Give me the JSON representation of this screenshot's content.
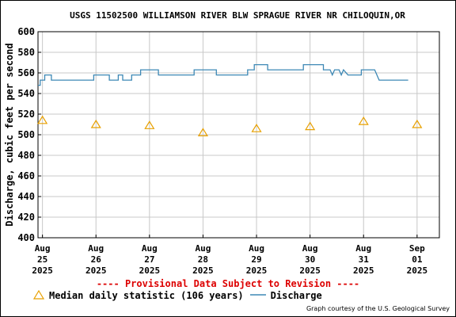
{
  "chart_data": {
    "type": "line",
    "title": "USGS 11502500 WILLIAMSON RIVER BLW SPRAGUE RIVER NR CHILOQUIN,OR",
    "ylabel": "Discharge, cubic feet per second",
    "xlabel": "",
    "ylim": [
      400,
      600
    ],
    "yticks": [
      400,
      420,
      440,
      460,
      480,
      500,
      520,
      540,
      560,
      580,
      600
    ],
    "grid": true,
    "x_range": [
      "2025-08-24T22:00",
      "2025-09-01T10:00"
    ],
    "xticks": [
      {
        "x": "2025-08-25",
        "lines": [
          "Aug",
          "25",
          "2025"
        ]
      },
      {
        "x": "2025-08-26",
        "lines": [
          "Aug",
          "26",
          "2025"
        ]
      },
      {
        "x": "2025-08-27",
        "lines": [
          "Aug",
          "27",
          "2025"
        ]
      },
      {
        "x": "2025-08-28",
        "lines": [
          "Aug",
          "28",
          "2025"
        ]
      },
      {
        "x": "2025-08-29",
        "lines": [
          "Aug",
          "29",
          "2025"
        ]
      },
      {
        "x": "2025-08-30",
        "lines": [
          "Aug",
          "30",
          "2025"
        ]
      },
      {
        "x": "2025-08-31",
        "lines": [
          "Aug",
          "31",
          "2025"
        ]
      },
      {
        "x": "2025-09-01",
        "lines": [
          "Sep",
          "01",
          "2025"
        ]
      }
    ],
    "series": [
      {
        "name": "Discharge",
        "color": "#3d88b5",
        "style": "line",
        "points": [
          [
            "2025-08-24T22:00",
            548
          ],
          [
            "2025-08-24T23:00",
            548
          ],
          [
            "2025-08-24T23:00",
            553
          ],
          [
            "2025-08-25T01:00",
            553
          ],
          [
            "2025-08-25T01:00",
            558
          ],
          [
            "2025-08-25T04:00",
            558
          ],
          [
            "2025-08-25T04:00",
            553
          ],
          [
            "2025-08-25T23:00",
            553
          ],
          [
            "2025-08-25T23:00",
            558
          ],
          [
            "2025-08-26T06:00",
            558
          ],
          [
            "2025-08-26T06:00",
            553
          ],
          [
            "2025-08-26T10:00",
            553
          ],
          [
            "2025-08-26T10:00",
            558
          ],
          [
            "2025-08-26T12:00",
            558
          ],
          [
            "2025-08-26T12:00",
            553
          ],
          [
            "2025-08-26T16:00",
            553
          ],
          [
            "2025-08-26T16:00",
            558
          ],
          [
            "2025-08-26T20:00",
            558
          ],
          [
            "2025-08-26T20:00",
            563
          ],
          [
            "2025-08-27T04:00",
            563
          ],
          [
            "2025-08-27T04:00",
            558
          ],
          [
            "2025-08-27T20:00",
            558
          ],
          [
            "2025-08-27T20:00",
            563
          ],
          [
            "2025-08-28T06:00",
            563
          ],
          [
            "2025-08-28T06:00",
            558
          ],
          [
            "2025-08-28T20:00",
            558
          ],
          [
            "2025-08-28T20:00",
            563
          ],
          [
            "2025-08-28T23:00",
            563
          ],
          [
            "2025-08-28T23:00",
            568
          ],
          [
            "2025-08-29T05:00",
            568
          ],
          [
            "2025-08-29T05:00",
            563
          ],
          [
            "2025-08-29T21:00",
            563
          ],
          [
            "2025-08-29T21:00",
            568
          ],
          [
            "2025-08-30T06:00",
            568
          ],
          [
            "2025-08-30T06:00",
            563
          ],
          [
            "2025-08-30T09:00",
            563
          ],
          [
            "2025-08-30T10:00",
            558
          ],
          [
            "2025-08-30T11:00",
            563
          ],
          [
            "2025-08-30T13:00",
            563
          ],
          [
            "2025-08-30T14:00",
            558
          ],
          [
            "2025-08-30T15:00",
            563
          ],
          [
            "2025-08-30T17:00",
            558
          ],
          [
            "2025-08-30T23:00",
            558
          ],
          [
            "2025-08-30T23:00",
            563
          ],
          [
            "2025-08-31T05:00",
            563
          ],
          [
            "2025-08-31T06:00",
            558
          ],
          [
            "2025-08-31T07:00",
            553
          ],
          [
            "2025-08-31T20:00",
            553
          ]
        ]
      },
      {
        "name": "Median daily statistic (106 years)",
        "color": "#e8a000",
        "style": "triangle",
        "points": [
          [
            "2025-08-25T00:00",
            514
          ],
          [
            "2025-08-26T00:00",
            510
          ],
          [
            "2025-08-27T00:00",
            509
          ],
          [
            "2025-08-28T00:00",
            502
          ],
          [
            "2025-08-29T00:00",
            506
          ],
          [
            "2025-08-30T00:00",
            508
          ],
          [
            "2025-08-31T00:00",
            513
          ],
          [
            "2025-09-01T00:00",
            510
          ]
        ]
      }
    ],
    "legend": [
      {
        "label": "Median daily statistic (106 years)",
        "symbol": "triangle",
        "color": "#e8a000"
      },
      {
        "label": "Discharge",
        "symbol": "line",
        "color": "#3d88b5"
      }
    ],
    "legend_position": "bottom-left",
    "annotation": "---- Provisional Data Subject to Revision ----",
    "credit": "Graph courtesy of the U.S. Geological Survey"
  }
}
